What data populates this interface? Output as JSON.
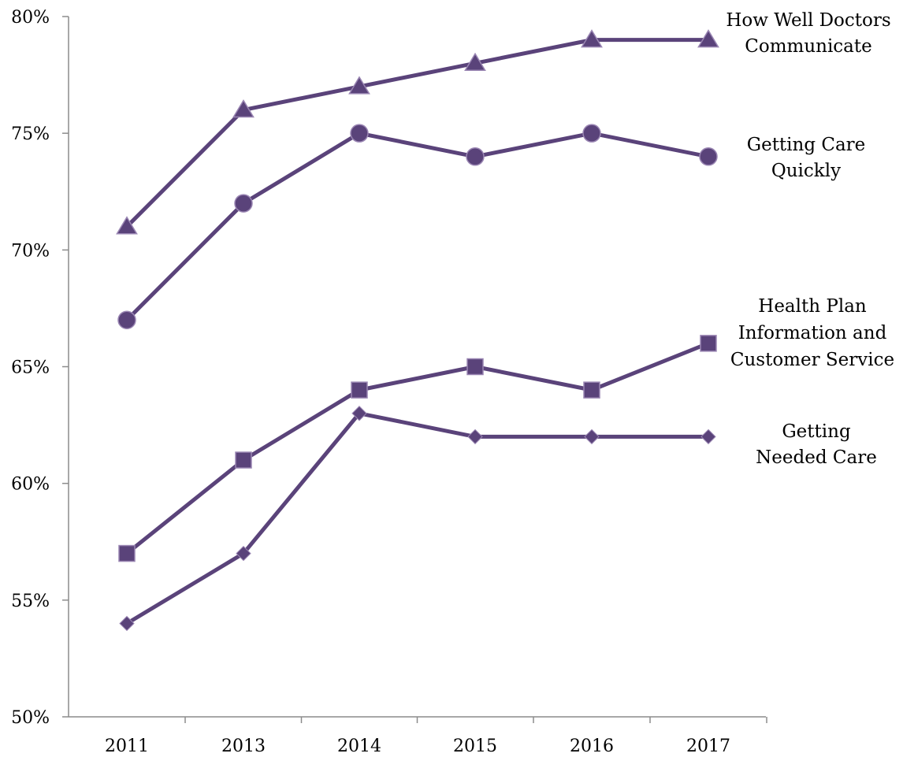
{
  "chart_data": {
    "type": "line",
    "title": "",
    "xlabel": "",
    "ylabel": "",
    "categories": [
      "2011",
      "2013",
      "2014",
      "2015",
      "2016",
      "2017"
    ],
    "ylim": [
      50,
      80
    ],
    "y_ticks": [
      50,
      55,
      60,
      65,
      70,
      75,
      80
    ],
    "y_tick_labels": [
      "50%",
      "55%",
      "60%",
      "65%",
      "70%",
      "75%",
      "80%"
    ],
    "grid": false,
    "legend": "series labels placed at right end of each line",
    "color": "#5a437a",
    "marker_fill": "#5a437a",
    "marker_edge": "#9a86b3",
    "axis_color": "#8c8c8c",
    "series": [
      {
        "name": "How Well Doctors Communicate",
        "label_lines": [
          "How Well Doctors",
          "Communicate"
        ],
        "marker": "triangle",
        "values": [
          71,
          76,
          77,
          78,
          79,
          79
        ]
      },
      {
        "name": "Getting Care Quickly",
        "label_lines": [
          "Getting Care",
          "Quickly"
        ],
        "marker": "circle",
        "values": [
          67,
          72,
          75,
          74,
          75,
          74
        ]
      },
      {
        "name": "Health Plan Information and Customer Service",
        "label_lines": [
          "Health Plan",
          "Information and",
          "Customer Service"
        ],
        "marker": "square",
        "values": [
          57,
          61,
          64,
          65,
          64,
          66
        ]
      },
      {
        "name": "Getting Needed Care",
        "label_lines": [
          "Getting",
          "Needed Care"
        ],
        "marker": "diamond",
        "values": [
          54,
          57,
          63,
          62,
          62,
          62
        ]
      }
    ]
  }
}
